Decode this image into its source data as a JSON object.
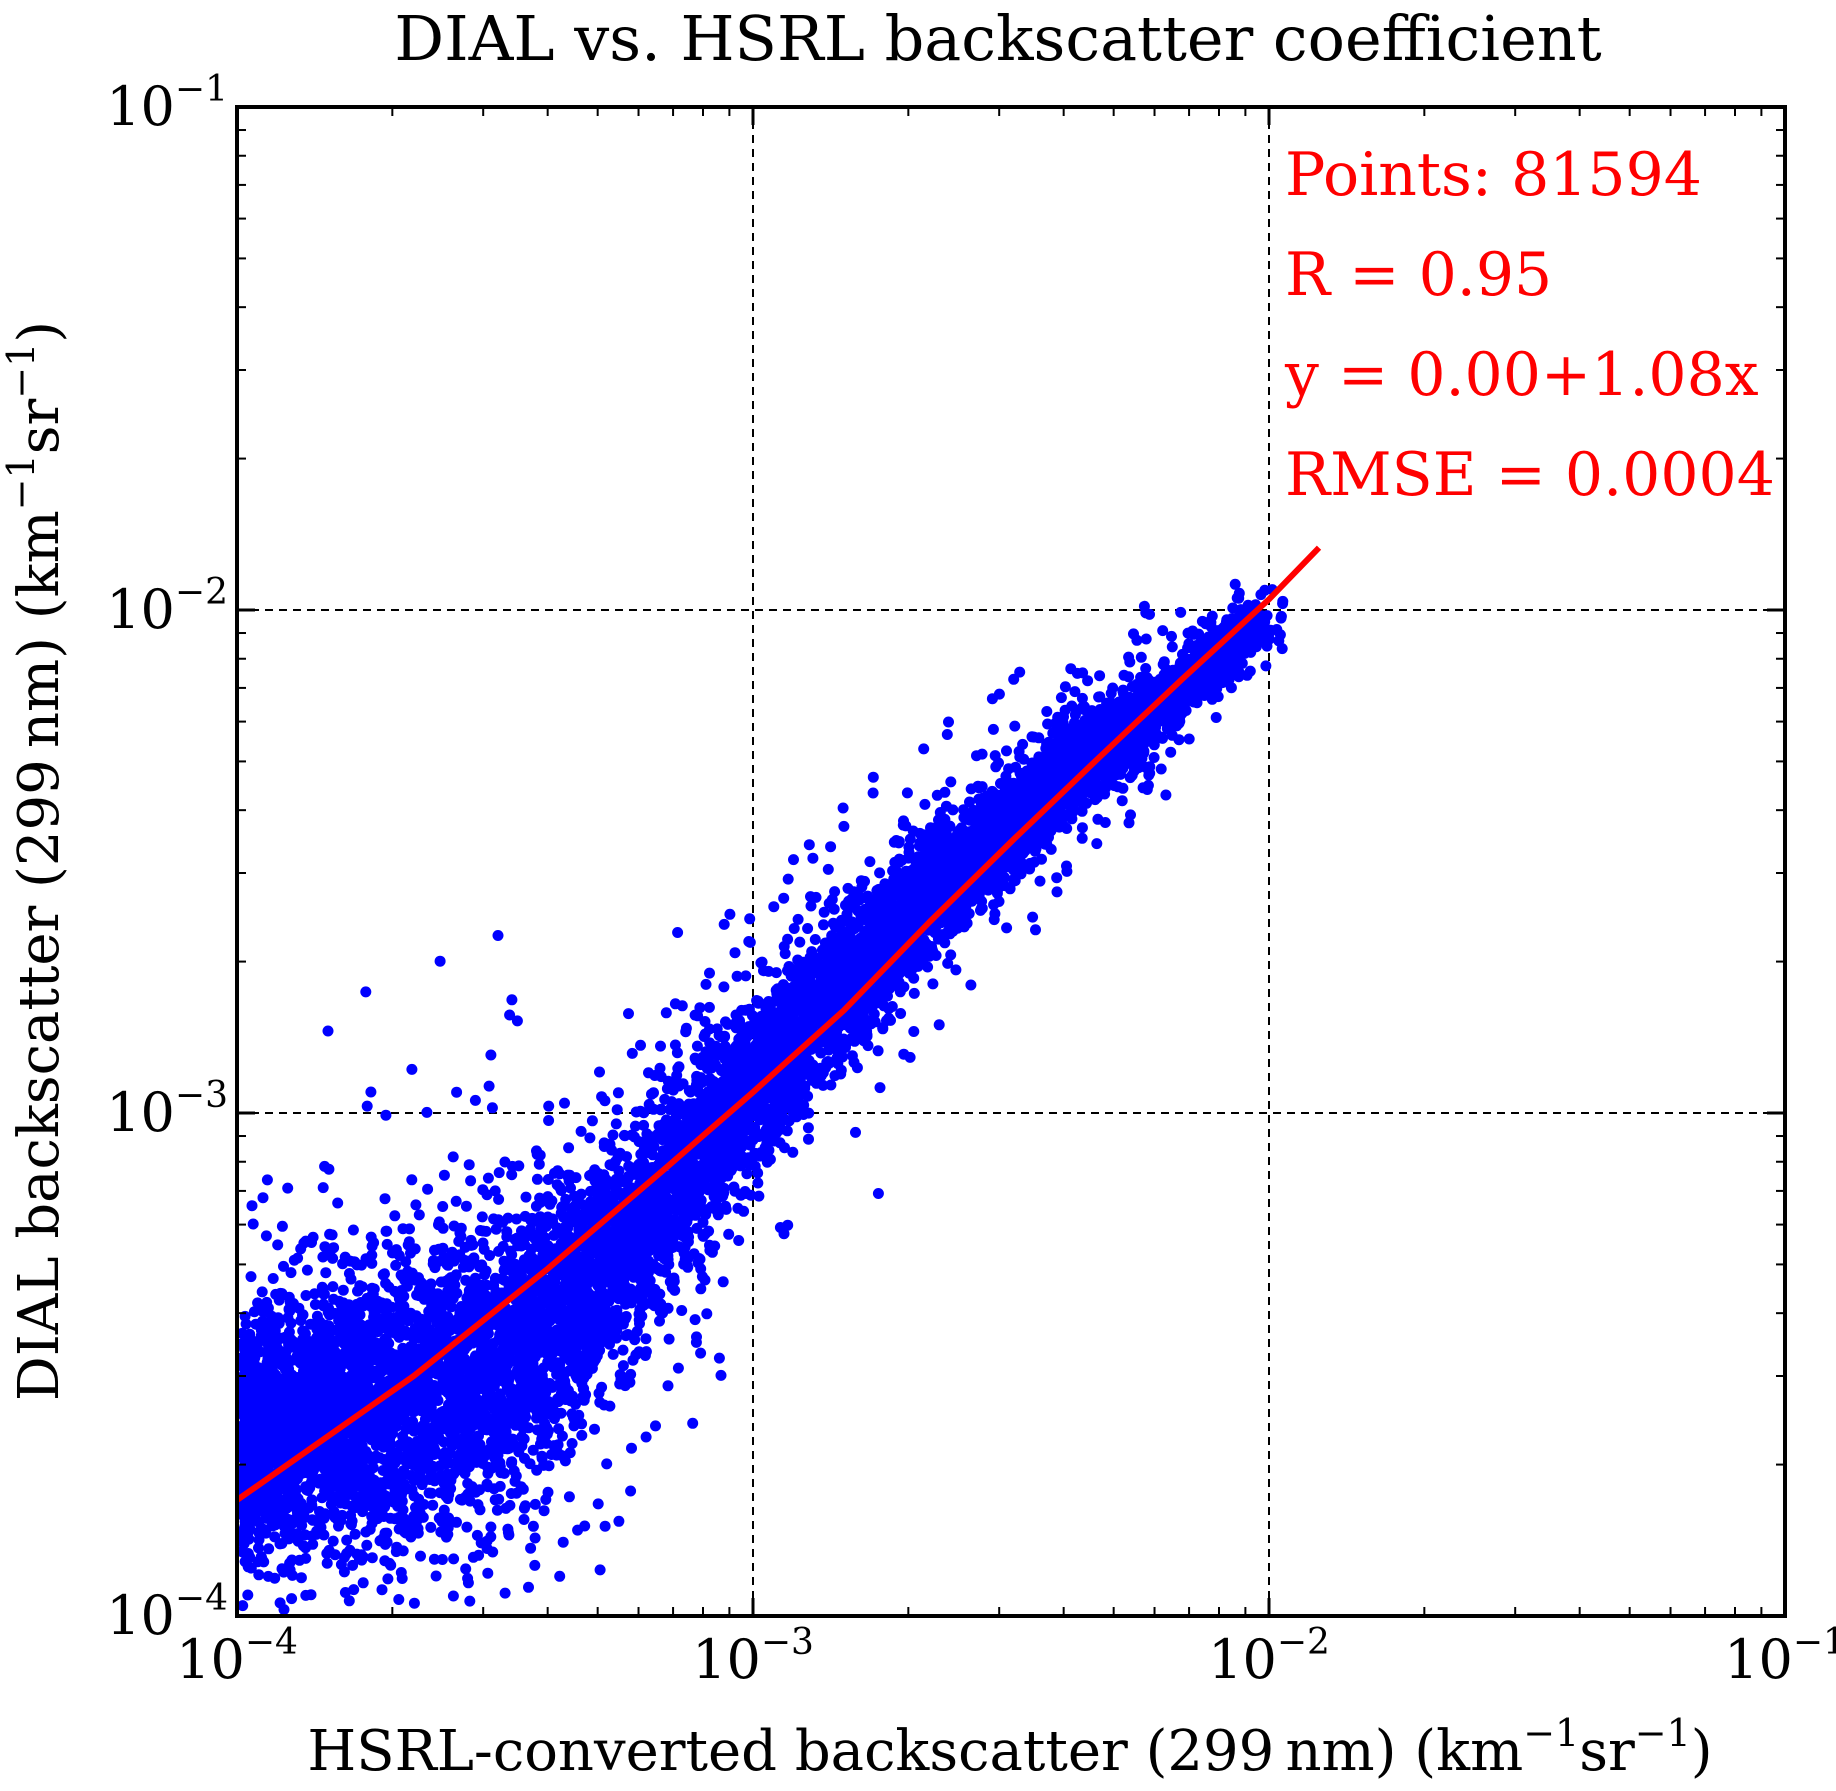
{
  "chart_data": {
    "type": "scatter",
    "title": "DIAL vs. HSRL backscatter coefficient",
    "xlabel": {
      "main": "HSRL-converted backscatter (299 nm) (km",
      "sup1": "−1",
      "mid": "sr",
      "sup2": "−1",
      "end": ")"
    },
    "ylabel": {
      "main": "DIAL backscatter (299 nm) (km",
      "sup1": "−1",
      "mid": "sr",
      "sup2": "−1",
      "end": ")"
    },
    "x_scale": "log",
    "y_scale": "log",
    "xlim": [
      0.0001,
      0.1
    ],
    "ylim": [
      0.0001,
      0.1
    ],
    "x_ticks": [
      {
        "value": 0.0001,
        "base": "10",
        "exp": "−4"
      },
      {
        "value": 0.001,
        "base": "10",
        "exp": "−3"
      },
      {
        "value": 0.01,
        "base": "10",
        "exp": "−2"
      },
      {
        "value": 0.1,
        "base": "10",
        "exp": "−1"
      }
    ],
    "y_ticks": [
      {
        "value": 0.0001,
        "base": "10",
        "exp": "−4"
      },
      {
        "value": 0.001,
        "base": "10",
        "exp": "−3"
      },
      {
        "value": 0.01,
        "base": "10",
        "exp": "−2"
      },
      {
        "value": 0.1,
        "base": "10",
        "exp": "−1"
      }
    ],
    "grid": true,
    "grid_style": "dashed",
    "point_color": "#0000ff",
    "fit_color": "#ff0000",
    "fit_line": {
      "x": [
        0.0001,
        0.00022,
        0.0004,
        0.00068,
        0.001,
        0.0015,
        0.0022,
        0.0032,
        0.0046,
        0.0068,
        0.01,
        0.0125
      ],
      "y": [
        0.00017,
        0.0003,
        0.00049,
        0.00078,
        0.0011,
        0.0016,
        0.0024,
        0.0035,
        0.005,
        0.0073,
        0.0105,
        0.0133
      ]
    },
    "cloud_band": [
      {
        "x": 0.0001,
        "lo": 0.0001,
        "hi": 0.0005
      },
      {
        "x": 0.00015,
        "lo": 0.0001,
        "hi": 0.00062
      },
      {
        "x": 0.00022,
        "lo": 0.0001,
        "hi": 0.00075
      },
      {
        "x": 0.0003,
        "lo": 0.00011,
        "hi": 0.00085
      },
      {
        "x": 0.0004,
        "lo": 0.00016,
        "hi": 0.00095
      },
      {
        "x": 0.0005,
        "lo": 0.00022,
        "hi": 0.00105
      },
      {
        "x": 0.00065,
        "lo": 0.00035,
        "hi": 0.0013
      },
      {
        "x": 0.0008,
        "lo": 0.00048,
        "hi": 0.0016
      },
      {
        "x": 0.001,
        "lo": 0.00065,
        "hi": 0.002
      },
      {
        "x": 0.0013,
        "lo": 0.00095,
        "hi": 0.0026
      },
      {
        "x": 0.0017,
        "lo": 0.0013,
        "hi": 0.0033
      },
      {
        "x": 0.0022,
        "lo": 0.0018,
        "hi": 0.0042
      },
      {
        "x": 0.003,
        "lo": 0.0025,
        "hi": 0.0052
      },
      {
        "x": 0.004,
        "lo": 0.0034,
        "hi": 0.0064
      },
      {
        "x": 0.0055,
        "lo": 0.0046,
        "hi": 0.0078
      },
      {
        "x": 0.007,
        "lo": 0.006,
        "hi": 0.009
      },
      {
        "x": 0.0085,
        "lo": 0.0072,
        "hi": 0.0102
      },
      {
        "x": 0.0095,
        "lo": 0.0082,
        "hi": 0.0108
      }
    ],
    "annotations": [
      {
        "label": "Points: 81594"
      },
      {
        "label": "R = 0.95"
      },
      {
        "label": "y = 0.00+1.08x"
      },
      {
        "label": "RMSE = 0.0004"
      }
    ],
    "annotation_color": "#ff0000"
  }
}
